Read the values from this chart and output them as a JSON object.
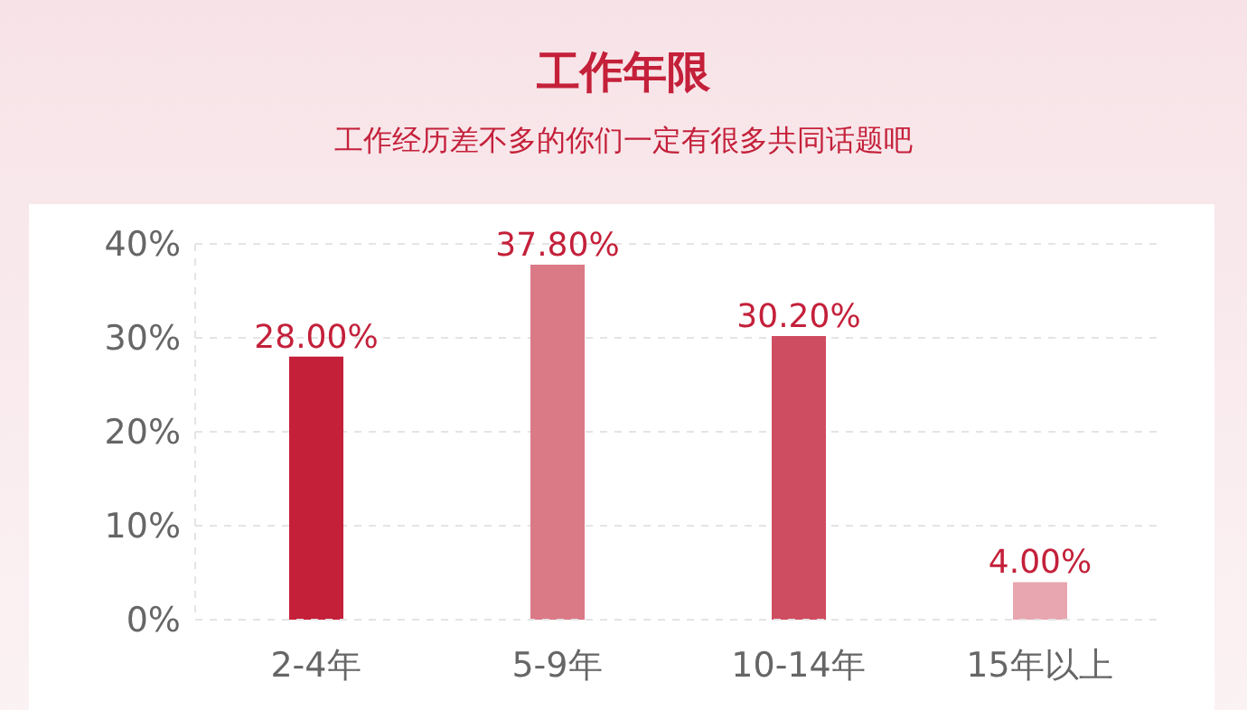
{
  "chart_data": {
    "type": "bar",
    "title": "工作年限",
    "subtitle": "工作经历差不多的你们一定有很多共同话题吧",
    "categories": [
      "2-4年",
      "5-9年",
      "10-14年",
      "15年以上"
    ],
    "values": [
      28,
      37.8,
      30.2,
      4
    ],
    "colors": [
      "#c4203a",
      "#db7a87",
      "#cf4d61",
      "#e8a6b0"
    ],
    "value_labels": [
      "28.00%",
      "37.80%",
      "30.20%",
      "4.00%"
    ],
    "ylim": [
      0,
      40
    ],
    "yticks": [
      {
        "value": 0,
        "label": "0%"
      },
      {
        "value": 10,
        "label": "10%"
      },
      {
        "value": 20,
        "label": "20%"
      },
      {
        "value": 30,
        "label": "30%"
      },
      {
        "value": 40,
        "label": "40%"
      }
    ],
    "grid": "y",
    "legend": false
  }
}
